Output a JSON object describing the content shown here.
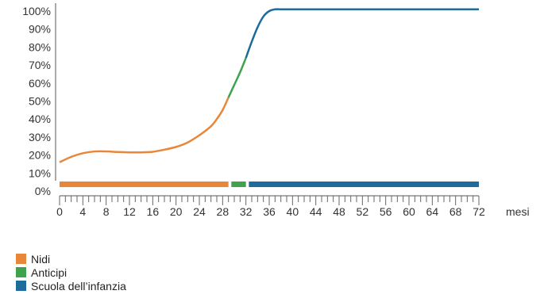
{
  "chart_data": {
    "type": "line",
    "title": "",
    "xlabel": "mesi",
    "ylabel": "",
    "xlim": [
      0,
      72
    ],
    "ylim": [
      0,
      100
    ],
    "y_ticks": [
      "0%",
      "10%",
      "20%",
      "30%",
      "40%",
      "50%",
      "60%",
      "70%",
      "80%",
      "90%",
      "100%"
    ],
    "x_ticks": [
      "0",
      "4",
      "8",
      "12",
      "16",
      "20",
      "24",
      "28",
      "32",
      "36",
      "40",
      "44",
      "48",
      "52",
      "56",
      "60",
      "64",
      "68",
      "72"
    ],
    "grid": false,
    "legend_position": "bottom-left",
    "series": [
      {
        "name": "Nidi",
        "color": "#e8873a",
        "x": [
          0,
          2,
          4,
          6,
          8,
          10,
          12,
          14,
          16,
          18,
          20,
          22,
          24,
          26,
          27,
          28,
          29
        ],
        "y": [
          16,
          19,
          21,
          22,
          22,
          21.7,
          21.5,
          21.5,
          21.8,
          23,
          24.5,
          27,
          31,
          36,
          40,
          45,
          52
        ]
      },
      {
        "name": "Anticipi",
        "color": "#3fa34d",
        "x": [
          29,
          30,
          31,
          32
        ],
        "y": [
          52,
          59,
          66,
          74
        ]
      },
      {
        "name": "Scuola dell'infanzia",
        "color": "#1e6b9c",
        "x": [
          32,
          33,
          34,
          35,
          36,
          37,
          38,
          40,
          44,
          48,
          52,
          56,
          60,
          64,
          68,
          72
        ],
        "y": [
          74,
          83,
          91,
          97,
          100,
          101,
          101,
          101,
          101,
          101,
          101,
          101,
          101,
          101,
          101,
          101
        ]
      }
    ],
    "bars": [
      {
        "series": "Nidi",
        "from": 0,
        "to": 29,
        "color": "#e8873a"
      },
      {
        "series": "Anticipi",
        "from": 29.5,
        "to": 32,
        "color": "#3fa34d"
      },
      {
        "series": "Scuola dell'infanzia",
        "from": 32.5,
        "to": 72,
        "color": "#1e6b9c"
      }
    ]
  },
  "legend": [
    {
      "label": "Nidi",
      "color": "#e8873a"
    },
    {
      "label": "Anticipi",
      "color": "#3fa34d"
    },
    {
      "label": "Scuola dell’infanzia",
      "color": "#1e6b9c"
    }
  ]
}
